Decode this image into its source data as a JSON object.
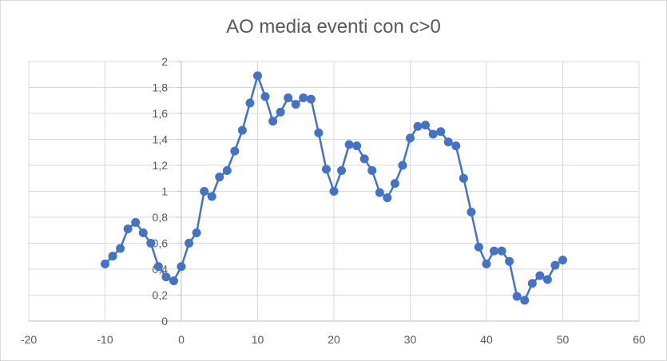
{
  "chart_data": {
    "type": "scatter",
    "title": "AO media eventi con c>0",
    "xlabel": "",
    "ylabel": "",
    "xlim": [
      -20,
      60
    ],
    "ylim": [
      0,
      2
    ],
    "x_ticks": [
      "-20",
      "-10",
      "0",
      "10",
      "20",
      "30",
      "40",
      "50",
      "60"
    ],
    "y_ticks": [
      "0",
      "0,2",
      "0,4",
      "0,6",
      "0,8",
      "1",
      "1,2",
      "1,4",
      "1,6",
      "1,8",
      "2"
    ],
    "grid": true,
    "legend": "none",
    "colors": {
      "series": "#4472c4",
      "grid": "#d9d9d9",
      "axis": "#bfbfbf",
      "text": "#595959"
    },
    "series": [
      {
        "style": "line-with-markers",
        "x": [
          -10,
          -9,
          -8,
          -7,
          -6,
          -5,
          -4,
          -3,
          -2,
          -1,
          0,
          1,
          2,
          3,
          4,
          5,
          6,
          7,
          8,
          9,
          10,
          11,
          12,
          13,
          14,
          15,
          16,
          17,
          18,
          19,
          20,
          21,
          22,
          23,
          24,
          25,
          26,
          27,
          28,
          29,
          30,
          31,
          32,
          33,
          34,
          35,
          36,
          37,
          38,
          39,
          40,
          41,
          42,
          43,
          44,
          45,
          46,
          47,
          48,
          49,
          50
        ],
        "y": [
          0.44,
          0.5,
          0.56,
          0.71,
          0.76,
          0.68,
          0.6,
          0.42,
          0.34,
          0.31,
          0.42,
          0.6,
          0.68,
          1.0,
          0.96,
          1.11,
          1.16,
          1.31,
          1.47,
          1.68,
          1.89,
          1.73,
          1.54,
          1.61,
          1.72,
          1.67,
          1.72,
          1.71,
          1.45,
          1.17,
          1.0,
          1.16,
          1.36,
          1.35,
          1.25,
          1.16,
          0.99,
          0.95,
          1.06,
          1.2,
          1.41,
          1.5,
          1.51,
          1.44,
          1.46,
          1.38,
          1.35,
          1.1,
          0.84,
          0.57,
          0.44,
          0.54,
          0.54,
          0.46,
          0.19,
          0.16,
          0.29,
          0.35,
          0.32,
          0.43,
          0.47
        ]
      }
    ]
  }
}
